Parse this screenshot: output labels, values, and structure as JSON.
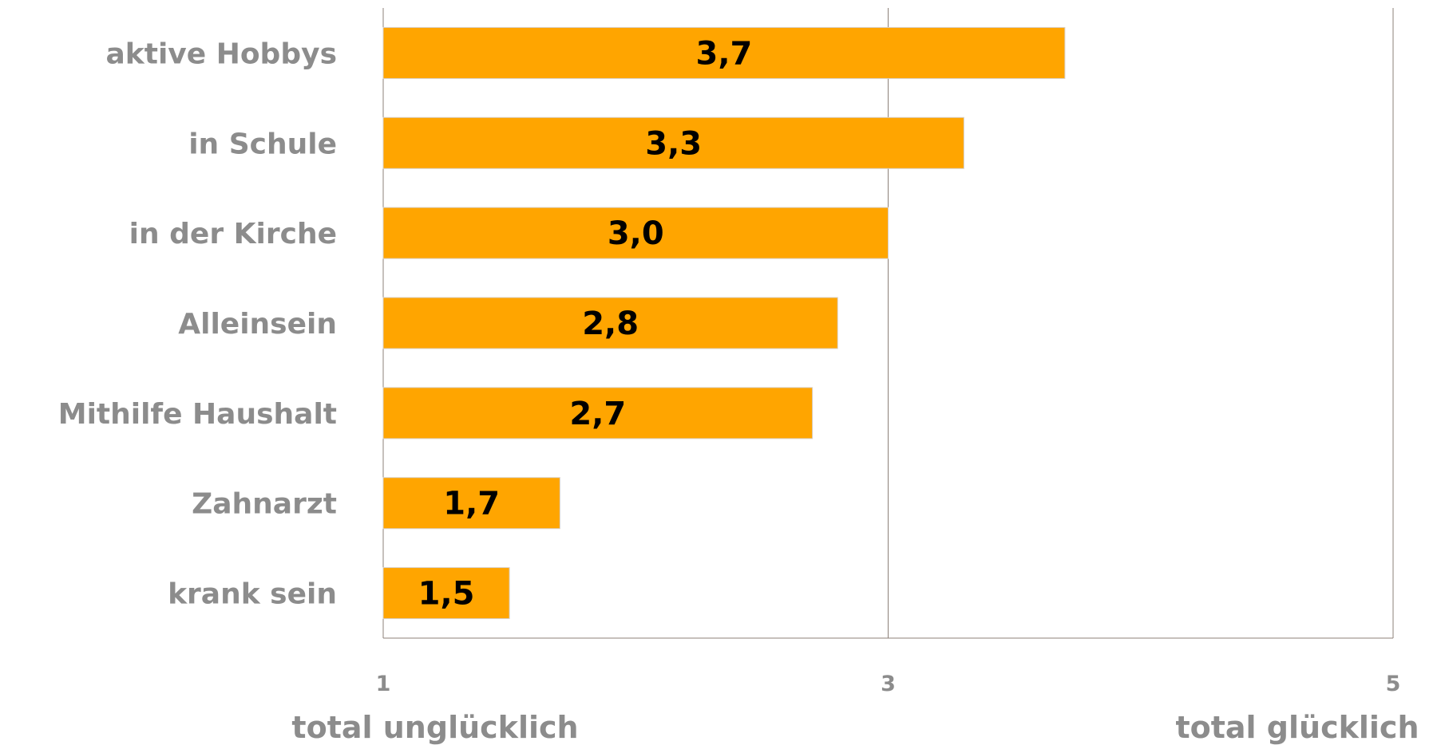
{
  "chart_data": {
    "type": "bar",
    "orientation": "horizontal",
    "categories": [
      "aktive Hobbys",
      "in Schule",
      "in der Kirche",
      "Alleinsein",
      "Mithilfe Haushalt",
      "Zahnarzt",
      "krank sein"
    ],
    "values": [
      3.7,
      3.3,
      3.0,
      2.8,
      2.7,
      1.7,
      1.5
    ],
    "value_labels": [
      "3,7",
      "3,3",
      "3,0",
      "2,8",
      "2,7",
      "1,7",
      "1,5"
    ],
    "xlim": [
      1,
      5
    ],
    "xticks": [
      1,
      3,
      5
    ],
    "xtick_labels": [
      "1",
      "3",
      "5"
    ],
    "axis_end_labels": {
      "min": "total unglücklich",
      "max": "total glücklich"
    },
    "grid": true,
    "legend": "none",
    "colors": {
      "bar": "#FFA500",
      "bar_edge": "#D8D0C8",
      "gridline": "#8C8078",
      "axis_text": "#8C8C8C",
      "value_text": "#000000"
    }
  }
}
